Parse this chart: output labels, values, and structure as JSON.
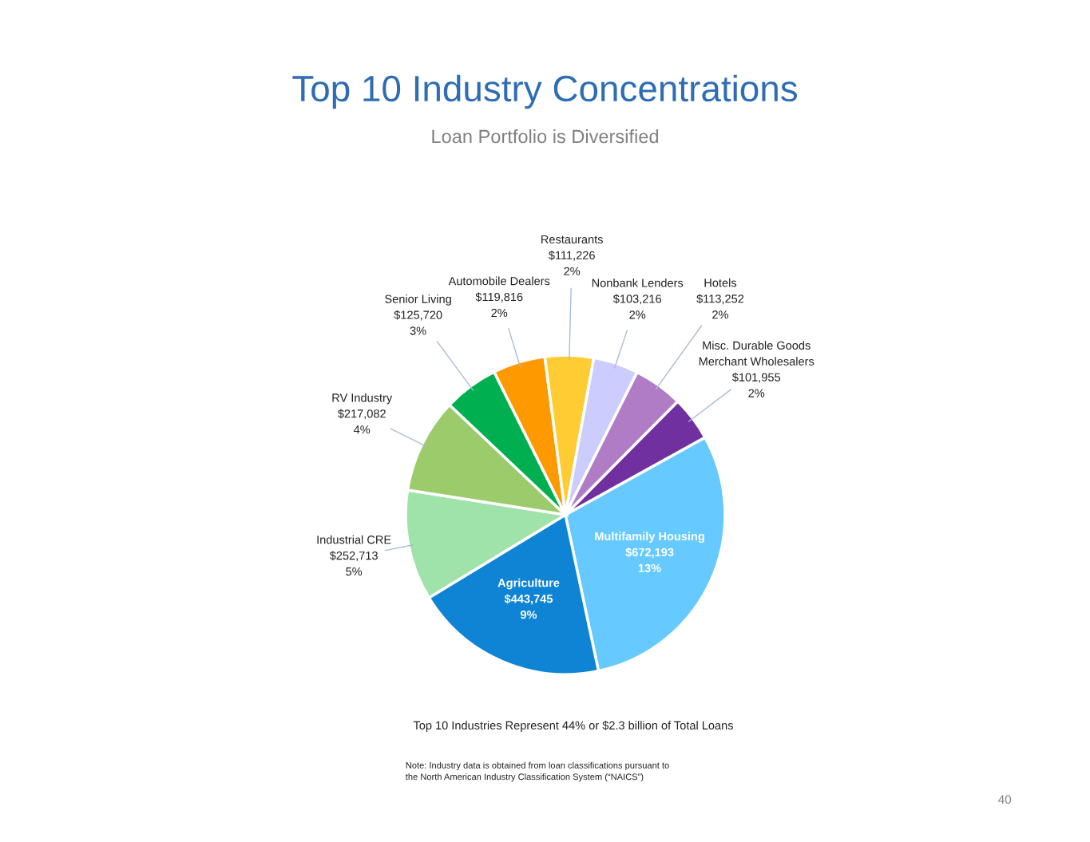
{
  "chart_data": {
    "type": "pie",
    "title": "Top 10 Industry Concentrations",
    "subtitle": "Loan Portfolio is Diversified",
    "categories": [
      "Multifamily Housing",
      "Agriculture",
      "Industrial CRE",
      "RV Industry",
      "Senior Living",
      "Automobile Dealers",
      "Restaurants",
      "Nonbank Lenders",
      "Hotels",
      "Misc. Durable Goods\nMerchant Wholesalers"
    ],
    "values": [
      672193,
      443745,
      252713,
      217082,
      125720,
      119816,
      111226,
      103216,
      113252,
      101955
    ],
    "value_labels": [
      "$672,193\n13%",
      "$443,745\n9%",
      "$252,713\n5%",
      "$217,082\n4%",
      "$125,720\n3%",
      "$119,816\n2%",
      "$111,226\n2%",
      "$103,216\n2%",
      "$113,252\n2%",
      "$101,955\n2%"
    ],
    "colors": [
      "#66c9ff",
      "#0f84d4",
      "#9fe3aa",
      "#9bcb6a",
      "#00b050",
      "#ff9900",
      "#ffcc33",
      "#ccccff",
      "#b07cc6",
      "#7030a0"
    ],
    "legend": false,
    "annotations": [
      "Top 10 Industries Represent 44% or $2.3 billion of Total Loans",
      "Note: Industry data is obtained from loan classifications pursuant to\nthe North American Industry Classification System (“NAICS”)",
      "40"
    ]
  }
}
